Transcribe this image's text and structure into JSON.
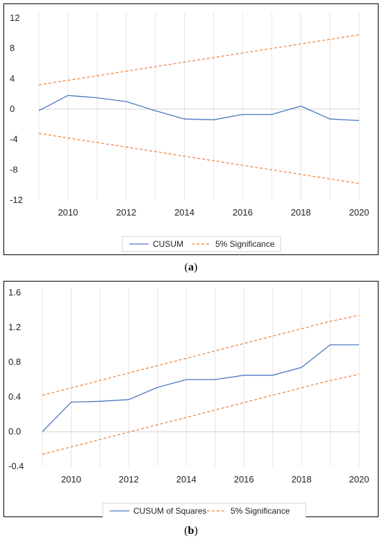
{
  "captions": {
    "a": "a",
    "b": "b"
  },
  "chart_data": [
    {
      "type": "line",
      "title": "",
      "xlabel": "",
      "ylabel": "",
      "xlim": [
        2009,
        2020
      ],
      "ylim": [
        -12,
        12
      ],
      "xticks": [
        "2010",
        "2012",
        "2014",
        "2016",
        "2018",
        "2020"
      ],
      "yticks": [
        "12",
        "8",
        "4",
        "0",
        "-4",
        "-8",
        "-12"
      ],
      "grid": "vertical",
      "legend": "bottom",
      "legend_entries": [
        "CUSUM",
        "5% Significance"
      ],
      "colors": {
        "series": "#4a78c2",
        "bounds": "#ed7d31"
      },
      "x": [
        2009,
        2010,
        2011,
        2012,
        2013,
        2014,
        2015,
        2016,
        2017,
        2018,
        2019,
        2020
      ],
      "series": [
        {
          "name": "CUSUM",
          "values": [
            -0.2,
            1.8,
            1.5,
            1.0,
            -0.2,
            -1.3,
            -1.4,
            -0.7,
            -0.7,
            0.4,
            -1.3,
            -1.5
          ]
        },
        {
          "name": "5% Significance",
          "values": [
            3.2,
            3.8,
            4.4,
            5.0,
            5.6,
            6.2,
            6.8,
            7.4,
            8.0,
            8.6,
            9.2,
            9.8
          ]
        },
        {
          "name": "5% Significance",
          "values": [
            -3.2,
            -3.8,
            -4.4,
            -5.0,
            -5.6,
            -6.2,
            -6.8,
            -7.4,
            -8.0,
            -8.6,
            -9.2,
            -9.8
          ]
        }
      ]
    },
    {
      "type": "line",
      "title": "",
      "xlabel": "",
      "ylabel": "",
      "xlim": [
        2009,
        2020
      ],
      "ylim": [
        -0.4,
        1.6
      ],
      "xticks": [
        "2010",
        "2012",
        "2014",
        "2016",
        "2018",
        "2020"
      ],
      "yticks": [
        "1.6",
        "1.2",
        "0.8",
        "0.4",
        "0.0",
        "-0.4"
      ],
      "grid": "vertical",
      "legend": "bottom",
      "legend_entries": [
        "CUSUM of Squares",
        "5% Significance"
      ],
      "colors": {
        "series": "#4a78c2",
        "bounds": "#ed7d31"
      },
      "x": [
        2009,
        2010,
        2011,
        2012,
        2013,
        2014,
        2015,
        2016,
        2017,
        2018,
        2019,
        2020
      ],
      "series": [
        {
          "name": "CUSUM of Squares",
          "values": [
            0.0,
            0.34,
            0.35,
            0.37,
            0.51,
            0.6,
            0.6,
            0.65,
            0.65,
            0.74,
            1.0,
            1.0
          ]
        },
        {
          "name": "5% Significance",
          "values": [
            0.42,
            0.505,
            0.59,
            0.675,
            0.76,
            0.845,
            0.93,
            1.015,
            1.1,
            1.185,
            1.27,
            1.34
          ]
        },
        {
          "name": "5% Significance",
          "values": [
            -0.26,
            -0.175,
            -0.09,
            -0.005,
            0.08,
            0.165,
            0.25,
            0.335,
            0.42,
            0.505,
            0.59,
            0.66
          ]
        }
      ]
    }
  ]
}
